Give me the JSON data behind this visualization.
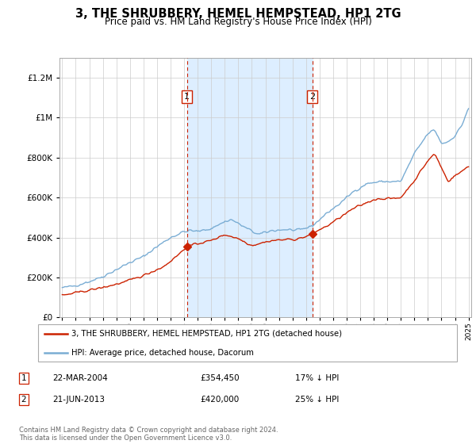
{
  "title": "3, THE SHRUBBERY, HEMEL HEMPSTEAD, HP1 2TG",
  "subtitle": "Price paid vs. HM Land Registry's House Price Index (HPI)",
  "ylim": [
    0,
    1300000
  ],
  "yticks": [
    0,
    200000,
    400000,
    600000,
    800000,
    1000000,
    1200000
  ],
  "sale1_date": "22-MAR-2004",
  "sale1_price": 354450,
  "sale1_x": 2004.22,
  "sale2_date": "21-JUN-2013",
  "sale2_price": 420000,
  "sale2_x": 2013.47,
  "legend_line1": "3, THE SHRUBBERY, HEMEL HEMPSTEAD, HP1 2TG (detached house)",
  "legend_line2": "HPI: Average price, detached house, Dacorum",
  "footer": "Contains HM Land Registry data © Crown copyright and database right 2024.\nThis data is licensed under the Open Government Licence v3.0.",
  "line_color_property": "#cc2200",
  "line_color_hpi": "#7aadd4",
  "shade_color": "#ddeeff",
  "vline_color": "#cc2200",
  "box_color": "#cc2200",
  "xstart": 1995,
  "xend": 2025
}
